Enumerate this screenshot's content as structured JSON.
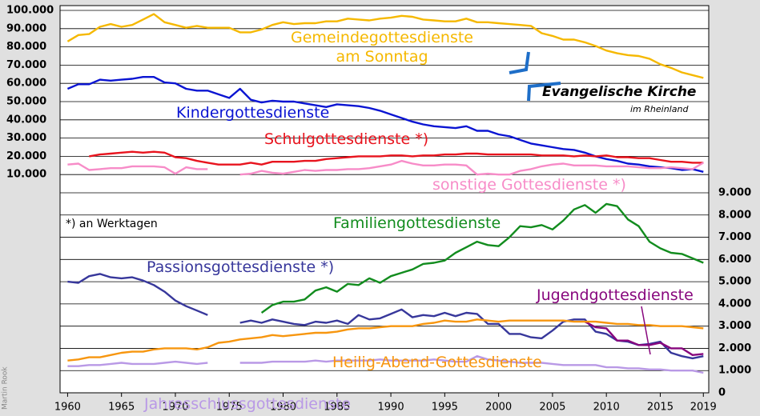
{
  "chart_data": [
    {
      "type": "line",
      "x": [
        1960,
        1961,
        1962,
        1963,
        1964,
        1965,
        1966,
        1967,
        1968,
        1969,
        1970,
        1971,
        1972,
        1973,
        1974,
        1975,
        1976,
        1977,
        1978,
        1979,
        1980,
        1981,
        1982,
        1983,
        1984,
        1985,
        1986,
        1987,
        1988,
        1989,
        1990,
        1991,
        1992,
        1993,
        1994,
        1995,
        1996,
        1997,
        1998,
        1999,
        2000,
        2001,
        2002,
        2003,
        2004,
        2005,
        2006,
        2007,
        2008,
        2009,
        2010,
        2011,
        2012,
        2013,
        2014,
        2015,
        2016,
        2017,
        2018,
        2019
      ],
      "xlim": [
        1959.3,
        2019.5
      ],
      "ylim": [
        0,
        100000
      ],
      "yticks": [
        {
          "value": 10000,
          "label": "10.000"
        },
        {
          "value": 20000,
          "label": "20.000"
        },
        {
          "value": 30000,
          "label": "30.000"
        },
        {
          "value": 40000,
          "label": "40.000"
        },
        {
          "value": 50000,
          "label": "50.000"
        },
        {
          "value": 60000,
          "label": "60.000"
        },
        {
          "value": 70000,
          "label": "70.000"
        },
        {
          "value": 80000,
          "label": "80.000"
        },
        {
          "value": 90000,
          "label": "90.000"
        },
        {
          "value": 100000,
          "label": "100.000"
        }
      ],
      "grid": true,
      "series": [
        {
          "name": "Gemeindegottesdienste am Sonntag",
          "color": "#f5b800",
          "values": [
            83000,
            86500,
            87000,
            91000,
            92500,
            91000,
            92000,
            95000,
            98000,
            93500,
            92000,
            90500,
            91500,
            90500,
            90500,
            90500,
            88000,
            88000,
            89500,
            92000,
            93500,
            92500,
            93000,
            93000,
            94000,
            94000,
            95500,
            95000,
            94500,
            95500,
            96000,
            97000,
            96500,
            95000,
            94500,
            94000,
            94000,
            95500,
            93500,
            93500,
            93000,
            92500,
            92000,
            91500,
            87500,
            86000,
            84000,
            84000,
            82500,
            80500,
            78000,
            76500,
            75500,
            75000,
            73500,
            70500,
            68500,
            66000,
            64500,
            63000
          ]
        },
        {
          "name": "Kindergottesdienste",
          "color": "#0a14d2",
          "values": [
            57000,
            59500,
            59500,
            62000,
            61500,
            62000,
            62500,
            63500,
            63500,
            60500,
            60000,
            57000,
            56000,
            56000,
            54000,
            52000,
            57000,
            51000,
            49500,
            50500,
            50000,
            50000,
            49000,
            48000,
            47000,
            48500,
            48000,
            47500,
            46500,
            45000,
            43000,
            41000,
            39000,
            37500,
            36500,
            36000,
            35500,
            36500,
            34000,
            34000,
            32000,
            31000,
            29000,
            27000,
            26000,
            25000,
            24000,
            23500,
            22000,
            20000,
            18500,
            17500,
            16000,
            15500,
            14500,
            14000,
            13500,
            12500,
            13000,
            11500
          ]
        },
        {
          "name": "Schulgottesdienste *)",
          "color": "#e8141e",
          "values": [
            null,
            null,
            20000,
            21000,
            21500,
            22000,
            22500,
            22000,
            22500,
            22000,
            19500,
            19000,
            17500,
            16500,
            15500,
            15500,
            15500,
            16500,
            15500,
            17000,
            17000,
            17000,
            17500,
            17500,
            18500,
            19000,
            19500,
            20000,
            20000,
            20000,
            20500,
            20500,
            20000,
            20500,
            20500,
            21000,
            21000,
            21500,
            21500,
            21000,
            21000,
            21000,
            21000,
            21000,
            20500,
            20500,
            20500,
            20000,
            20500,
            20000,
            20500,
            19500,
            19500,
            19000,
            19000,
            18000,
            17000,
            17000,
            16500,
            16500
          ]
        },
        {
          "name": "sonstige Gottesdienste *)",
          "color": "#f78cc8",
          "values": [
            15500,
            16000,
            12500,
            13000,
            13500,
            13500,
            14500,
            14500,
            14500,
            14000,
            10500,
            14000,
            13000,
            13000,
            null,
            null,
            10000,
            10500,
            12000,
            11000,
            10500,
            11500,
            12500,
            12000,
            12500,
            12500,
            13000,
            13000,
            13500,
            14500,
            15500,
            17500,
            16000,
            15000,
            15000,
            15500,
            15500,
            15000,
            10000,
            10500,
            10000,
            10000,
            12000,
            13000,
            14500,
            15500,
            16000,
            15000,
            15000,
            15000,
            14500,
            14500,
            14500,
            14000,
            13500,
            13500,
            14000,
            13500,
            13000,
            16500
          ]
        }
      ]
    },
    {
      "type": "line",
      "x": [
        1960,
        1961,
        1962,
        1963,
        1964,
        1965,
        1966,
        1967,
        1968,
        1969,
        1970,
        1971,
        1972,
        1973,
        1974,
        1975,
        1976,
        1977,
        1978,
        1979,
        1980,
        1981,
        1982,
        1983,
        1984,
        1985,
        1986,
        1987,
        1988,
        1989,
        1990,
        1991,
        1992,
        1993,
        1994,
        1995,
        1996,
        1997,
        1998,
        1999,
        2000,
        2001,
        2002,
        2003,
        2004,
        2005,
        2006,
        2007,
        2008,
        2009,
        2010,
        2011,
        2012,
        2013,
        2014,
        2015,
        2016,
        2017,
        2018,
        2019
      ],
      "xlim": [
        1959.3,
        2019.5
      ],
      "xticks": [
        1960,
        1965,
        1970,
        1975,
        1980,
        1985,
        1990,
        1995,
        2000,
        2005,
        2010,
        2015,
        2019
      ],
      "ylim": [
        0,
        9000
      ],
      "yticks": [
        0,
        {
          "value": 1000,
          "label": "1.000"
        },
        {
          "value": 2000,
          "label": "2.000"
        },
        {
          "value": 3000,
          "label": "3.000"
        },
        {
          "value": 4000,
          "label": "4.000"
        },
        {
          "value": 5000,
          "label": "5.000"
        },
        {
          "value": 6000,
          "label": "6.000"
        },
        {
          "value": 7000,
          "label": "7.000"
        },
        {
          "value": 8000,
          "label": "8.000"
        },
        {
          "value": 9000,
          "label": "9.000"
        }
      ],
      "grid": true,
      "series": [
        {
          "name": "Familiengottesdienste",
          "color": "#128c1e",
          "values": [
            null,
            null,
            null,
            null,
            null,
            null,
            null,
            null,
            null,
            null,
            null,
            null,
            null,
            null,
            null,
            null,
            null,
            null,
            3600,
            3950,
            4100,
            4100,
            4200,
            4600,
            4750,
            4550,
            4900,
            4850,
            5150,
            4950,
            5250,
            5400,
            5550,
            5800,
            5850,
            5950,
            6300,
            6550,
            6800,
            6650,
            6600,
            7000,
            7500,
            7450,
            7550,
            7350,
            7750,
            8250,
            8450,
            8100,
            8500,
            8400,
            7800,
            7500,
            6800,
            6500,
            6300,
            6250,
            6050,
            5850
          ]
        },
        {
          "name": "Passionsgottesdienste *)",
          "color": "#37379b",
          "values": [
            5000,
            4950,
            5250,
            5350,
            5200,
            5150,
            5200,
            5050,
            4850,
            4550,
            4150,
            3900,
            3700,
            3500,
            null,
            null,
            3150,
            3250,
            3150,
            3300,
            3200,
            3100,
            3050,
            3200,
            3150,
            3250,
            3100,
            3500,
            3300,
            3350,
            3550,
            3750,
            3400,
            3500,
            3450,
            3600,
            3450,
            3600,
            3550,
            3100,
            3100,
            2650,
            2650,
            2500,
            2450,
            2800,
            3200,
            3300,
            3300,
            2750,
            2650,
            2350,
            2300,
            2150,
            2200,
            2300,
            1800,
            1650,
            1550,
            1650
          ]
        },
        {
          "name": "Jugendgottesdienste",
          "color": "#87067d",
          "values": [
            null,
            null,
            null,
            null,
            null,
            null,
            null,
            null,
            null,
            null,
            null,
            null,
            null,
            null,
            null,
            null,
            null,
            null,
            null,
            null,
            null,
            null,
            null,
            null,
            null,
            null,
            null,
            null,
            null,
            null,
            null,
            null,
            null,
            null,
            null,
            null,
            null,
            null,
            null,
            null,
            null,
            null,
            null,
            null,
            null,
            null,
            null,
            null,
            3200,
            2950,
            2900,
            2350,
            2350,
            2150,
            2150,
            2250,
            2000,
            2000,
            1700,
            1750
          ]
        },
        {
          "name": "Heilig-Abend-Gottesdienste",
          "color": "#f7960f",
          "values": [
            1450,
            1500,
            1600,
            1600,
            1700,
            1800,
            1850,
            1850,
            1950,
            2000,
            2000,
            2000,
            1950,
            2050,
            2250,
            2300,
            2400,
            2450,
            2500,
            2600,
            2550,
            2600,
            2650,
            2700,
            2700,
            2750,
            2850,
            2900,
            2900,
            2950,
            3000,
            3000,
            3000,
            3100,
            3150,
            3250,
            3200,
            3200,
            3300,
            3250,
            3200,
            3250,
            3250,
            3250,
            3250,
            3250,
            3250,
            3200,
            3200,
            3200,
            3150,
            3100,
            3100,
            3050,
            3050,
            3000,
            3000,
            3000,
            2950,
            2900
          ]
        },
        {
          "name": "Jahresschlussgottesdienste",
          "color": "#b999e6",
          "values": [
            1200,
            1200,
            1250,
            1250,
            1300,
            1350,
            1300,
            1300,
            1300,
            1350,
            1400,
            1350,
            1300,
            1350,
            null,
            null,
            1350,
            1350,
            1350,
            1400,
            1400,
            1400,
            1400,
            1450,
            1400,
            1450,
            1450,
            1450,
            1450,
            1500,
            1450,
            1450,
            1450,
            1450,
            1500,
            1450,
            1400,
            1400,
            1650,
            1500,
            1450,
            1400,
            1350,
            1350,
            1350,
            1300,
            1250,
            1250,
            1250,
            1250,
            1150,
            1150,
            1100,
            1100,
            1050,
            1050,
            1000,
            1000,
            1000,
            900
          ]
        }
      ]
    }
  ],
  "annotations": {
    "note": "*) an Werktagen",
    "brand": "Evangelische Kirche",
    "brand_sub": "im Rheinland",
    "credit": "Martin Rook"
  }
}
